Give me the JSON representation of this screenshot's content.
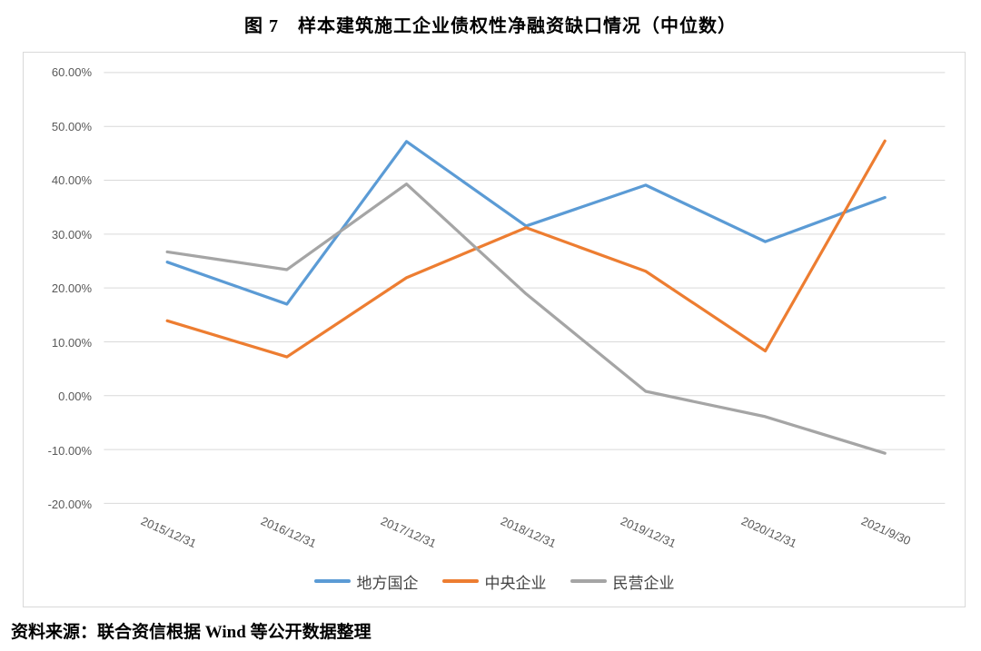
{
  "page": {
    "title": "图 7　样本建筑施工企业债权性净融资缺口情况（中位数）",
    "source": "资料来源：联合资信根据 Wind 等公开数据整理"
  },
  "chart_data": {
    "type": "line",
    "title": "图 7　样本建筑施工企业债权性净融资缺口情况（中位数）",
    "categories": [
      "2015/12/31",
      "2016/12/31",
      "2017/12/31",
      "2018/12/31",
      "2019/12/31",
      "2020/12/31",
      "2021/9/30"
    ],
    "series": [
      {
        "name": "地方国企",
        "key": "local-soe",
        "color": "#5B9BD5",
        "values": [
          24.8,
          17.0,
          47.2,
          31.5,
          39.1,
          28.6,
          36.8
        ]
      },
      {
        "name": "中央企业",
        "key": "central-enterprise",
        "color": "#ED7D31",
        "values": [
          13.9,
          7.2,
          21.9,
          31.2,
          23.1,
          8.3,
          47.3
        ]
      },
      {
        "name": "民营企业",
        "key": "private-enterprise",
        "color": "#A5A5A5",
        "values": [
          26.7,
          23.4,
          39.3,
          18.9,
          0.8,
          -3.9,
          -10.7
        ]
      }
    ],
    "xlabel": "",
    "ylabel": "",
    "ylim": [
      -20,
      60
    ],
    "y_ticks": [
      {
        "value": 60,
        "label": "60.00%"
      },
      {
        "value": 50,
        "label": "50.00%"
      },
      {
        "value": 40,
        "label": "40.00%"
      },
      {
        "value": 30,
        "label": "30.00%"
      },
      {
        "value": 20,
        "label": "20.00%"
      },
      {
        "value": 10,
        "label": "10.00%"
      },
      {
        "value": 0,
        "label": "0.00%"
      },
      {
        "value": -10,
        "label": "-10.00%"
      },
      {
        "value": -20,
        "label": "-20.00%"
      }
    ],
    "grid": "horizontal",
    "legend_position": "bottom",
    "colors": {
      "gridline": "#d9d9d9",
      "axis_label": "#595959",
      "legend_label": "#444444",
      "border": "#d9d9d9"
    }
  }
}
